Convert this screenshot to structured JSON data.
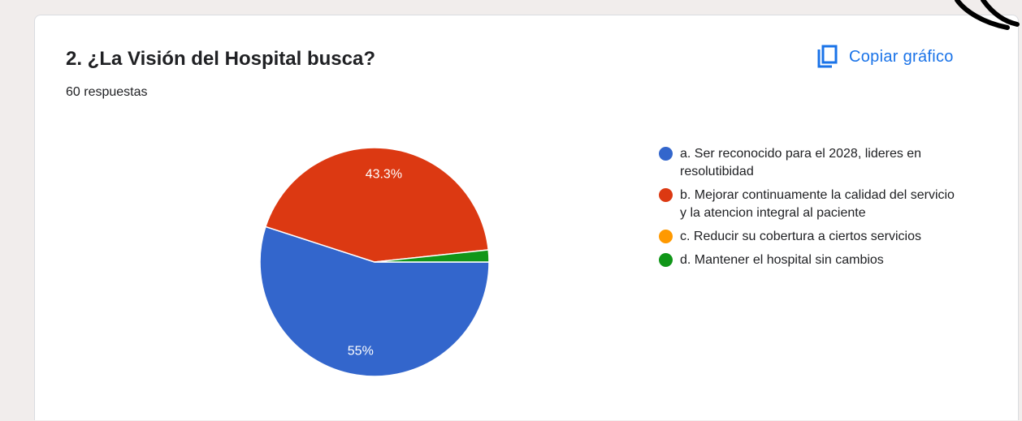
{
  "question": {
    "title": "2. ¿La Visión del Hospital busca?",
    "responses": "60 respuestas"
  },
  "toolbar": {
    "copy_label": "Copiar gráfico",
    "copy_icon": "copy-icon",
    "accent_color": "#1a73e8"
  },
  "chart_data": {
    "type": "pie",
    "categories": [
      "a. Ser reconocido para el 2028, lideres en resolutibidad",
      "b. Mejorar continuamente la calidad del servicio y la atencion integral al paciente",
      "c. Reducir su cobertura a ciertos servicios",
      "d. Mantener el hospital sin cambios"
    ],
    "values": [
      55,
      43.3,
      0,
      1.7
    ],
    "data_labels": [
      "55%",
      "43.3%",
      "",
      ""
    ],
    "colors": [
      "#3366cc",
      "#dc3912",
      "#ff9900",
      "#109618"
    ],
    "legend_position": "right"
  }
}
